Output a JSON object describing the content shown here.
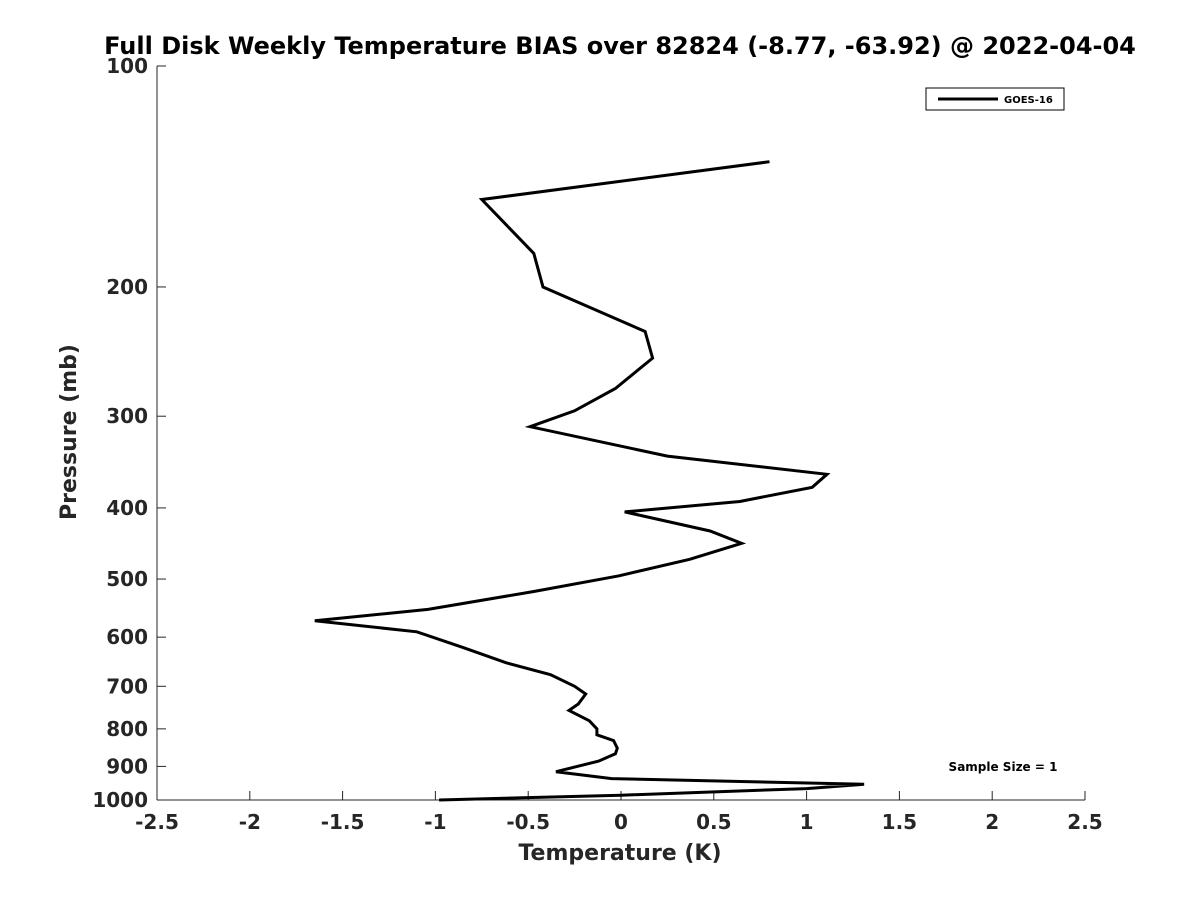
{
  "chart_data": {
    "type": "line",
    "title": "Full Disk Weekly Temperature BIAS over 82824 (-8.77, -63.92) @ 2022-04-04",
    "xlabel": "Temperature (K)",
    "ylabel": "Pressure (mb)",
    "xlim": [
      -2.5,
      2.5
    ],
    "ylim": [
      100,
      1000
    ],
    "y_scale": "log",
    "y_reversed": true,
    "x_ticks": [
      -2.5,
      -2,
      -1.5,
      -1,
      -0.5,
      0,
      0.5,
      1,
      1.5,
      2,
      2.5
    ],
    "x_tick_labels": [
      "-2.5",
      "-2",
      "-1.5",
      "-1",
      "-0.5",
      "0",
      "0.5",
      "1",
      "1.5",
      "2",
      "2.5"
    ],
    "y_ticks": [
      100,
      200,
      300,
      400,
      500,
      600,
      700,
      800,
      900,
      1000
    ],
    "y_tick_labels": [
      "100",
      "200",
      "300",
      "400",
      "500",
      "600",
      "700",
      "800",
      "900",
      "1000"
    ],
    "grid": false,
    "legend_position": "top-right",
    "annotation": "Sample Size = 1",
    "series": [
      {
        "name": "GOES-16",
        "color": "#000000",
        "points": [
          [
            0.8,
            135
          ],
          [
            -0.75,
            152
          ],
          [
            -0.47,
            180
          ],
          [
            -0.42,
            200
          ],
          [
            0.13,
            230
          ],
          [
            0.17,
            250
          ],
          [
            -0.03,
            275
          ],
          [
            -0.25,
            295
          ],
          [
            -0.49,
            310
          ],
          [
            0.25,
            340
          ],
          [
            1.11,
            360
          ],
          [
            1.03,
            375
          ],
          [
            0.64,
            392
          ],
          [
            0.02,
            405
          ],
          [
            0.48,
            430
          ],
          [
            0.65,
            447
          ],
          [
            0.37,
            470
          ],
          [
            -0.01,
            495
          ],
          [
            -0.47,
            520
          ],
          [
            -1.04,
            550
          ],
          [
            -1.65,
            570
          ],
          [
            -1.1,
            590
          ],
          [
            -0.85,
            620
          ],
          [
            -0.62,
            650
          ],
          [
            -0.38,
            675
          ],
          [
            -0.25,
            700
          ],
          [
            -0.19,
            717
          ],
          [
            -0.23,
            740
          ],
          [
            -0.28,
            755
          ],
          [
            -0.17,
            780
          ],
          [
            -0.13,
            800
          ],
          [
            -0.13,
            815
          ],
          [
            -0.04,
            830
          ],
          [
            -0.02,
            850
          ],
          [
            -0.03,
            865
          ],
          [
            -0.12,
            885
          ],
          [
            -0.35,
            915
          ],
          [
            -0.05,
            935
          ],
          [
            1.31,
            952
          ],
          [
            1.0,
            965
          ],
          [
            0.0,
            985
          ],
          [
            -0.98,
            1000
          ]
        ]
      }
    ]
  }
}
